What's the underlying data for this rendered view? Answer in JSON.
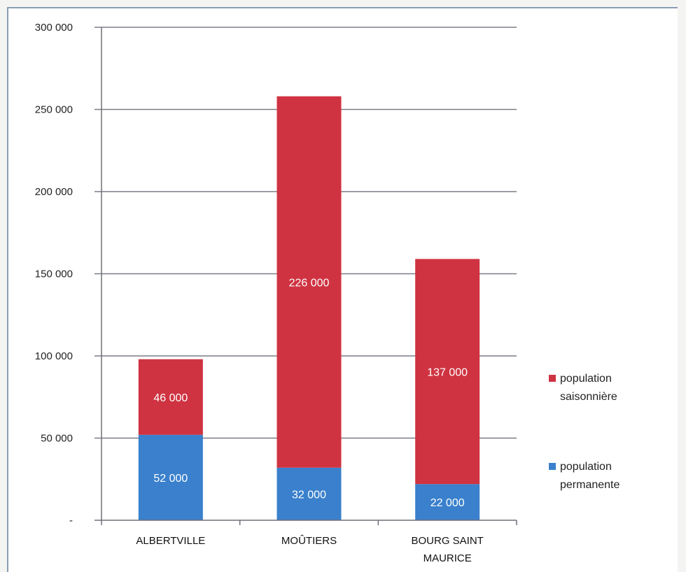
{
  "chart_data": {
    "type": "bar",
    "stacked": true,
    "categories": [
      "ALBERTVILLE",
      "MOÛTIERS",
      "BOURG SAINT MAURICE"
    ],
    "series": [
      {
        "name": "population permanente",
        "values": [
          52000,
          32000,
          22000
        ],
        "labels": [
          "52 000",
          "32 000",
          "22 000"
        ],
        "color": "#3a80cc"
      },
      {
        "name": "population saisonnière",
        "values": [
          46000,
          226000,
          137000
        ],
        "labels": [
          "46 000",
          "226 000",
          "137 000"
        ],
        "color": "#cf3341"
      }
    ],
    "yticks": [
      {
        "value": 0,
        "label": "-"
      },
      {
        "value": 50000,
        "label": "50 000"
      },
      {
        "value": 100000,
        "label": "100 000"
      },
      {
        "value": 150000,
        "label": "150 000"
      },
      {
        "value": 200000,
        "label": "200 000"
      },
      {
        "value": 250000,
        "label": "250 000"
      },
      {
        "value": 300000,
        "label": "300 000"
      }
    ],
    "ylim": [
      0,
      300000
    ],
    "grid": true,
    "legend_position": "right",
    "legend": [
      {
        "line1": "population",
        "line2": "saisonnière",
        "color": "#cf3341"
      },
      {
        "line1": "population",
        "line2": "permanente",
        "color": "#3a80cc"
      }
    ],
    "title": "",
    "xlabel": "",
    "ylabel": ""
  }
}
